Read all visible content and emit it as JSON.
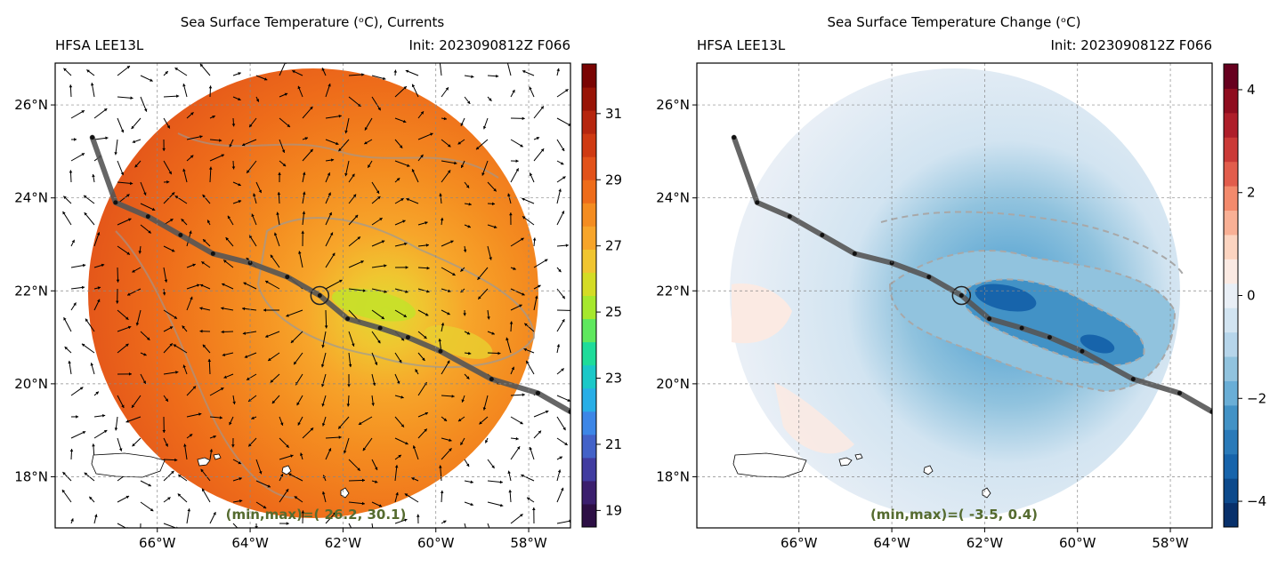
{
  "panels": [
    {
      "title": "Sea Surface Temperature (ᵒC), Currents",
      "left_label": "HFSA LEE13L",
      "right_label": "Init: 2023090812Z F066",
      "minmax": "(min,max)=(  26.2,   30.1)",
      "colorbar_ticks": [
        "19",
        "21",
        "23",
        "25",
        "27",
        "29",
        "31"
      ],
      "colorbar_colors": [
        "#2d0f45",
        "#3b1f6e",
        "#413ca0",
        "#4362c8",
        "#3d86e6",
        "#28aee6",
        "#1bc8c8",
        "#1fdc9a",
        "#5fe85e",
        "#a6e82d",
        "#d4dc25",
        "#f0c530",
        "#f7a52a",
        "#f48c20",
        "#ee6c1a",
        "#e2521a",
        "#cf3a12",
        "#b6260e",
        "#981406",
        "#7a0403"
      ],
      "range": [
        18.5,
        32.5
      ]
    },
    {
      "title": "Sea Surface Temperature Change (ᵒC)",
      "left_label": "HFSA LEE13L",
      "right_label": "Init: 2023090812Z F066",
      "minmax": "(min,max)=(  -3.5,    0.4)",
      "colorbar_ticks": [
        "−4",
        "−2",
        "0",
        "2",
        "4"
      ],
      "colorbar_colors": [
        "#08306b",
        "#0d4a8c",
        "#1764ab",
        "#2a7ab9",
        "#4292c6",
        "#6aaed6",
        "#91c3de",
        "#b6d5ea",
        "#d2e4f1",
        "#e9eff6",
        "#fbeae3",
        "#fcd4c0",
        "#f9b095",
        "#f38a6c",
        "#e25d4c",
        "#cb3a37",
        "#ae1e2a",
        "#8f0d1f",
        "#67001f"
      ],
      "range": [
        -4.5,
        4.5
      ]
    }
  ],
  "axes": {
    "x_ticks": [
      "66°W",
      "64°W",
      "62°W",
      "60°W",
      "58°W"
    ],
    "y_ticks": [
      "18°N",
      "20°N",
      "22°N",
      "24°N",
      "26°N"
    ],
    "grid": true
  },
  "chart_data": [
    {
      "type": "heatmap",
      "title": "Sea Surface Temperature (ᵒC), Currents",
      "units": "ᵒC",
      "x": [
        -66,
        -64,
        -62,
        -60,
        -58
      ],
      "y": [
        18,
        20,
        22,
        24,
        26
      ],
      "xlim": [
        -68.2,
        -57.1
      ],
      "ylim": [
        16.9,
        26.9
      ],
      "min": 26.2,
      "max": 30.1,
      "colorbar_range": [
        18.5,
        32.5
      ],
      "storm_center": [
        -62.5,
        21.9
      ],
      "track": [
        [
          -67.4,
          25.3
        ],
        [
          -66.9,
          23.9
        ],
        [
          -66.2,
          23.6
        ],
        [
          -65.5,
          23.2
        ],
        [
          -64.8,
          22.8
        ],
        [
          -64.0,
          22.6
        ],
        [
          -63.2,
          22.3
        ],
        [
          -62.5,
          21.9
        ],
        [
          -61.9,
          21.4
        ],
        [
          -61.2,
          21.2
        ],
        [
          -60.6,
          21.0
        ],
        [
          -59.9,
          20.7
        ],
        [
          -58.8,
          20.1
        ],
        [
          -57.8,
          19.8
        ],
        [
          -57.1,
          19.4
        ]
      ],
      "vectors": true
    },
    {
      "type": "heatmap",
      "title": "Sea Surface Temperature Change (ᵒC)",
      "units": "ᵒC",
      "x": [
        -66,
        -64,
        -62,
        -60,
        -58
      ],
      "y": [
        18,
        20,
        22,
        24,
        26
      ],
      "xlim": [
        -68.2,
        -57.1
      ],
      "ylim": [
        16.9,
        26.9
      ],
      "min": -3.5,
      "max": 0.4,
      "colorbar_range": [
        -4.5,
        4.5
      ],
      "storm_center": [
        -62.5,
        21.9
      ],
      "track": [
        [
          -67.4,
          25.3
        ],
        [
          -66.9,
          23.9
        ],
        [
          -66.2,
          23.6
        ],
        [
          -65.5,
          23.2
        ],
        [
          -64.8,
          22.8
        ],
        [
          -64.0,
          22.6
        ],
        [
          -63.2,
          22.3
        ],
        [
          -62.5,
          21.9
        ],
        [
          -61.9,
          21.4
        ],
        [
          -61.2,
          21.2
        ],
        [
          -60.6,
          21.0
        ],
        [
          -59.9,
          20.7
        ],
        [
          -58.8,
          20.1
        ],
        [
          -57.8,
          19.8
        ],
        [
          -57.1,
          19.4
        ]
      ]
    }
  ]
}
